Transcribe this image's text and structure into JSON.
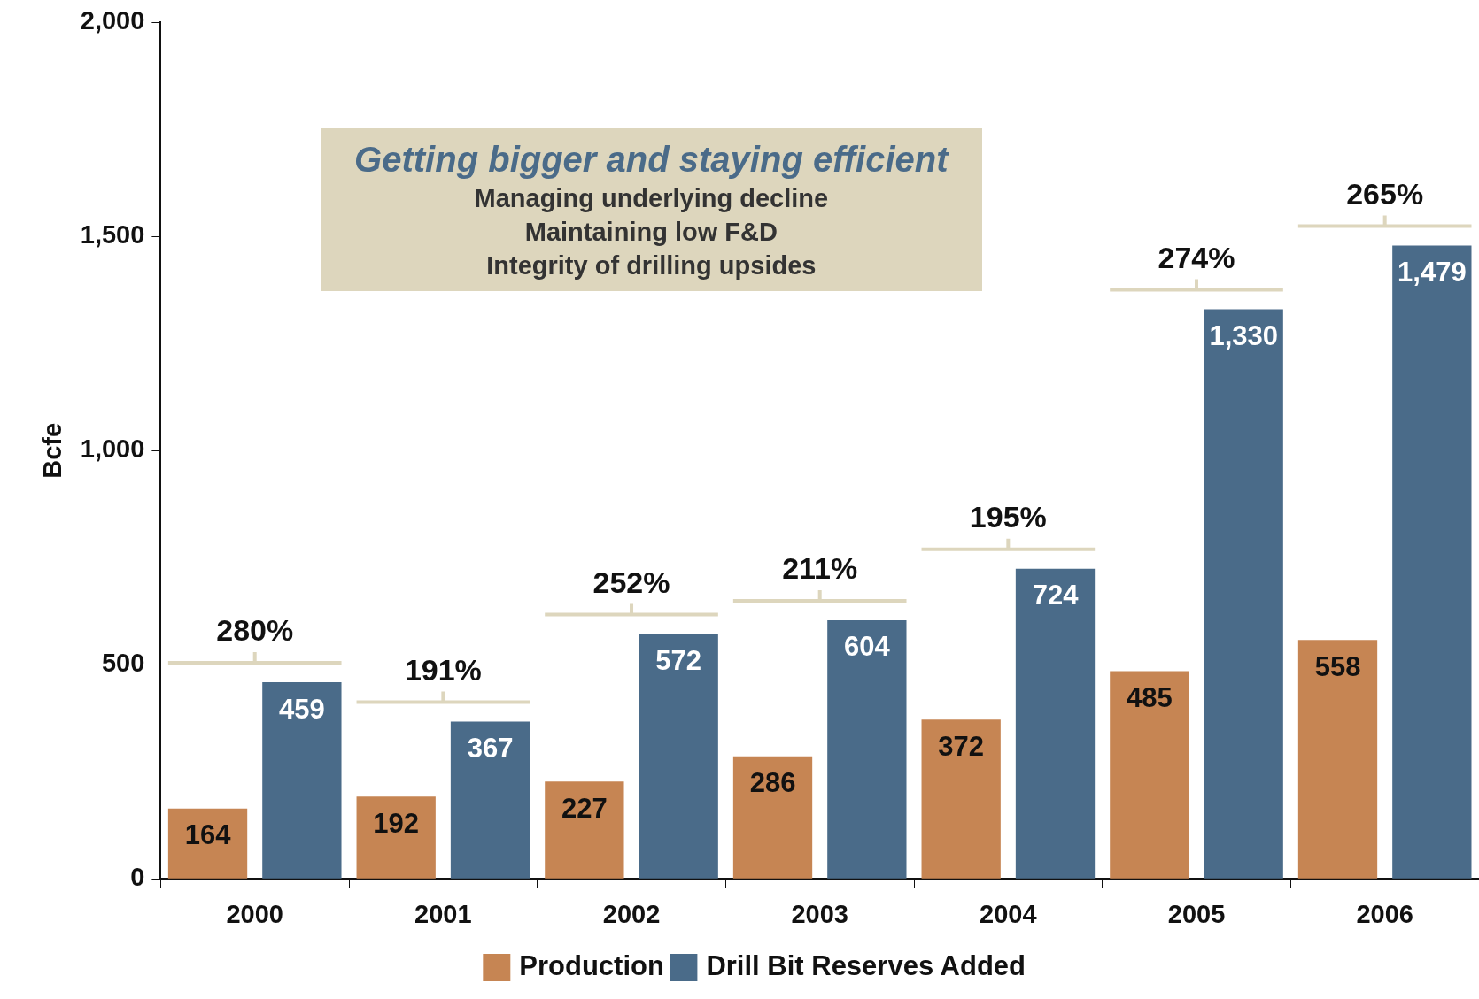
{
  "chart_data": {
    "type": "bar",
    "title": "Getting bigger and staying efficient",
    "ylabel": "Bcfe",
    "categories": [
      "2000",
      "2001",
      "2002",
      "2003",
      "2004",
      "2005",
      "2006"
    ],
    "series": [
      {
        "name": "Production",
        "color": "#c68553",
        "values": [
          164,
          192,
          227,
          286,
          372,
          485,
          558
        ],
        "value_labels": [
          "164",
          "192",
          "227",
          "286",
          "372",
          "485",
          "558"
        ]
      },
      {
        "name": "Drill Bit Reserves Added",
        "color": "#4a6b89",
        "values": [
          459,
          367,
          572,
          604,
          724,
          1330,
          1479
        ],
        "value_labels": [
          "459",
          "367",
          "572",
          "604",
          "724",
          "1,330",
          "1,479"
        ]
      }
    ],
    "ylim": [
      0,
      2000
    ],
    "yticks": [
      0,
      500,
      {
        "value": 1000,
        "label": "1,000"
      },
      {
        "value": 1500,
        "label": "1,500"
      },
      {
        "value": 2000,
        "label": "2,000"
      }
    ],
    "grid": false,
    "legend": "bottom",
    "annotations": [
      "Managing underlying decline",
      "Maintaining low F&D",
      "Integrity of drilling upsides",
      "280%",
      "191%",
      "252%",
      "211%",
      "195%",
      "274%",
      "265%"
    ]
  }
}
